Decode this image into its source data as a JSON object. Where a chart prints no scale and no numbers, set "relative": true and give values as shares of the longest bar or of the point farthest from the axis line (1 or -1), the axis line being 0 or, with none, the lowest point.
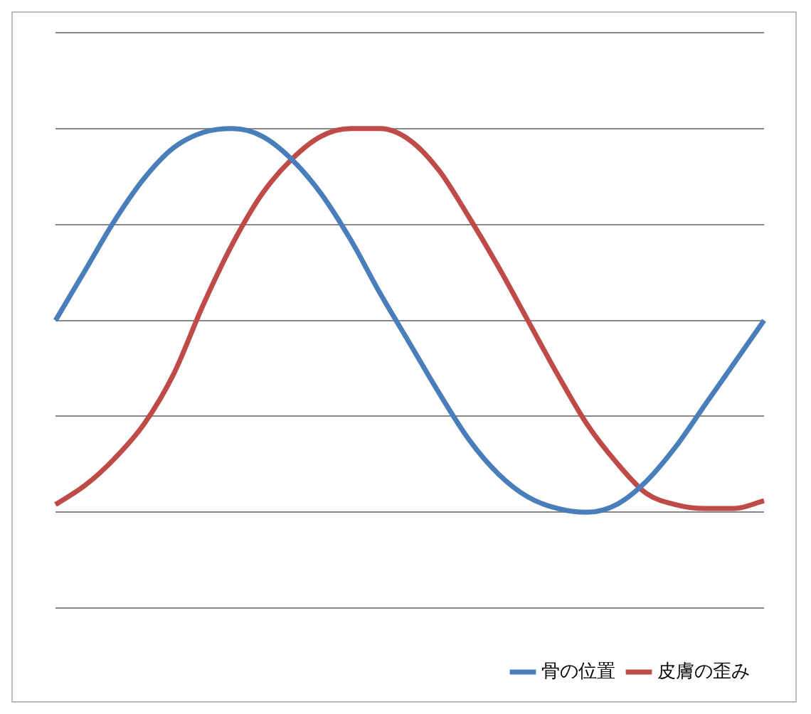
{
  "chart_data": {
    "type": "line",
    "relative": true,
    "grid": "y",
    "legend": "bottom right",
    "marker": "none",
    "line_style": "solid",
    "categories": [
      null,
      null,
      null,
      null,
      null,
      null,
      null,
      null,
      null,
      null,
      null,
      null,
      null,
      null,
      null,
      null,
      null,
      null,
      null,
      null,
      null,
      null,
      null,
      null,
      null
    ],
    "series": [
      {
        "name": "骨の位置",
        "color": "#4a7ebb",
        "values": [
          0.5,
          0.63,
          0.76,
          0.87,
          0.95,
          0.99,
          1.0,
          0.98,
          0.92,
          0.83,
          0.71,
          0.57,
          0.44,
          0.31,
          0.19,
          0.1,
          0.04,
          0.01,
          0.0,
          0.02,
          0.08,
          0.17,
          0.28,
          0.39,
          0.5
        ]
      },
      {
        "name": "皮膚の歪み",
        "color": "#be4b48",
        "values": [
          0.02,
          0.07,
          0.14,
          0.23,
          0.36,
          0.54,
          0.7,
          0.83,
          0.92,
          0.98,
          1.0,
          1.0,
          0.97,
          0.89,
          0.77,
          0.64,
          0.5,
          0.36,
          0.23,
          0.13,
          0.05,
          0.02,
          0.01,
          0.01,
          0.03
        ]
      }
    ]
  }
}
